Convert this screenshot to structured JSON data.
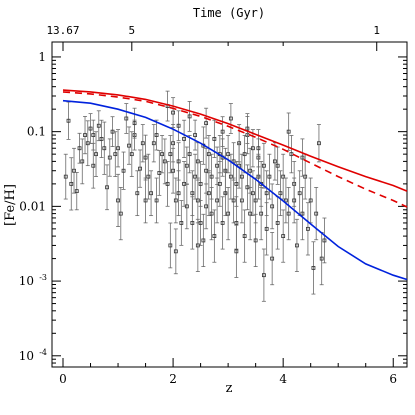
{
  "chart_data": {
    "type": "scatter",
    "xlabel": "z",
    "ylabel": "[Fe/H]",
    "top_axis_label": "Time (Gyr)",
    "top_ticks": [
      {
        "label": "13.67",
        "z": 0
      },
      {
        "label": "5",
        "z": 1.25
      },
      {
        "label": "1",
        "z": 5.7
      }
    ],
    "xlim": [
      -0.2,
      6.25
    ],
    "ylim_log10": [
      -4.15,
      0.2
    ],
    "x_major_ticks": [
      0,
      2,
      4,
      6
    ],
    "x_tick_labels": [
      "0",
      "2",
      "4",
      "6"
    ],
    "y_major_ticks_log10": [
      0,
      -1,
      -2,
      -3,
      -4
    ],
    "y_tick_labels": [
      {
        "base": "1",
        "exp": ""
      },
      {
        "base": "0.1",
        "exp": ""
      },
      {
        "base": "0.01",
        "exp": ""
      },
      {
        "base": "10",
        "exp": "-3"
      },
      {
        "base": "10",
        "exp": "-4"
      }
    ],
    "grid": false,
    "legend": "none",
    "series": [
      {
        "style": "solid",
        "color": "#e00000",
        "x": [
          0,
          0.5,
          1,
          1.5,
          2,
          2.5,
          3,
          3.5,
          4,
          4.5,
          5,
          5.5,
          6,
          6.25
        ],
        "y": [
          0.36,
          0.34,
          0.31,
          0.27,
          0.22,
          0.172,
          0.128,
          0.092,
          0.066,
          0.047,
          0.034,
          0.025,
          0.019,
          0.016
        ]
      },
      {
        "style": "dashed",
        "color": "#e00000",
        "x": [
          0,
          0.5,
          1,
          1.5,
          2,
          2.5,
          3,
          3.5,
          4,
          4.5,
          5,
          5.5,
          6,
          6.25
        ],
        "y": [
          0.34,
          0.32,
          0.29,
          0.255,
          0.205,
          0.16,
          0.118,
          0.084,
          0.058,
          0.038,
          0.025,
          0.017,
          0.012,
          0.0098
        ]
      },
      {
        "style": "solid",
        "color": "#0022dd",
        "x": [
          0,
          0.5,
          1,
          1.5,
          2,
          2.5,
          3,
          3.5,
          4,
          4.5,
          5,
          5.5,
          6,
          6.25
        ],
        "y": [
          0.26,
          0.24,
          0.2,
          0.155,
          0.108,
          0.07,
          0.042,
          0.023,
          0.0118,
          0.0058,
          0.0029,
          0.0017,
          0.0012,
          0.00105
        ]
      }
    ],
    "scatter": {
      "color": "#6a6a6a",
      "points": [
        [
          0.05,
          0.025,
          0.3
        ],
        [
          0.1,
          0.14,
          0.25
        ],
        [
          0.15,
          0.02,
          0.35
        ],
        [
          0.2,
          0.03,
          0.3
        ],
        [
          0.25,
          0.016,
          0.25
        ],
        [
          0.3,
          0.06,
          0.2
        ],
        [
          0.4,
          0.09,
          0.25
        ],
        [
          0.45,
          0.07,
          0.3
        ],
        [
          0.5,
          0.11,
          0.2
        ],
        [
          0.55,
          0.09,
          0.2
        ],
        [
          0.6,
          0.05,
          0.3
        ],
        [
          0.65,
          0.12,
          0.2
        ],
        [
          0.7,
          0.08,
          0.25
        ],
        [
          0.75,
          0.06,
          0.35
        ],
        [
          0.8,
          0.018,
          0.3
        ],
        [
          0.85,
          0.045,
          0.25
        ],
        [
          0.9,
          0.1,
          0.2
        ],
        [
          0.95,
          0.05,
          0.3
        ],
        [
          1.0,
          0.012,
          0.35
        ],
        [
          1.05,
          0.008,
          0.35
        ],
        [
          1.1,
          0.03,
          0.25
        ],
        [
          1.15,
          0.15,
          0.2
        ],
        [
          1.2,
          0.065,
          0.25
        ],
        [
          1.25,
          0.05,
          0.3
        ],
        [
          1.3,
          0.09,
          0.2
        ],
        [
          1.35,
          0.015,
          0.3
        ],
        [
          1.4,
          0.032,
          0.25
        ],
        [
          1.45,
          0.07,
          0.25
        ],
        [
          1.5,
          0.045,
          0.3
        ],
        [
          1.5,
          0.012,
          0.3
        ],
        [
          1.55,
          0.025,
          0.3
        ],
        [
          1.6,
          0.015,
          0.3
        ],
        [
          1.65,
          0.07,
          0.25
        ],
        [
          1.7,
          0.012,
          0.3
        ],
        [
          1.75,
          0.028,
          0.3
        ],
        [
          1.8,
          0.05,
          0.25
        ],
        [
          1.85,
          0.04,
          0.3
        ],
        [
          1.9,
          0.22,
          0.2
        ],
        [
          1.9,
          0.02,
          0.3
        ],
        [
          1.95,
          0.003,
          0.3
        ],
        [
          2.0,
          0.07,
          0.25
        ],
        [
          2.0,
          0.03,
          0.3
        ],
        [
          2.05,
          0.0025,
          0.3
        ],
        [
          2.05,
          0.012,
          0.3
        ],
        [
          2.1,
          0.015,
          0.3
        ],
        [
          2.1,
          0.04,
          0.25
        ],
        [
          2.15,
          0.006,
          0.3
        ],
        [
          2.2,
          0.02,
          0.3
        ],
        [
          2.2,
          0.08,
          0.25
        ],
        [
          2.25,
          0.035,
          0.25
        ],
        [
          2.25,
          0.01,
          0.3
        ],
        [
          2.3,
          0.05,
          0.25
        ],
        [
          2.35,
          0.015,
          0.3
        ],
        [
          2.35,
          0.006,
          0.35
        ],
        [
          2.4,
          0.025,
          0.3
        ],
        [
          2.4,
          0.09,
          0.2
        ],
        [
          2.45,
          0.012,
          0.3
        ],
        [
          2.45,
          0.04,
          0.25
        ],
        [
          2.5,
          0.006,
          0.3
        ],
        [
          2.5,
          0.02,
          0.3
        ],
        [
          2.55,
          0.065,
          0.25
        ],
        [
          2.55,
          0.0035,
          0.35
        ],
        [
          2.6,
          0.03,
          0.3
        ],
        [
          2.6,
          0.01,
          0.3
        ],
        [
          2.65,
          0.05,
          0.25
        ],
        [
          2.65,
          0.015,
          0.3
        ],
        [
          2.7,
          0.008,
          0.35
        ],
        [
          2.7,
          0.025,
          0.3
        ],
        [
          2.75,
          0.08,
          0.25
        ],
        [
          2.75,
          0.004,
          0.35
        ],
        [
          2.8,
          0.035,
          0.25
        ],
        [
          2.8,
          0.012,
          0.3
        ],
        [
          2.85,
          0.05,
          0.25
        ],
        [
          2.85,
          0.02,
          0.3
        ],
        [
          2.9,
          0.006,
          0.35
        ],
        [
          2.9,
          0.1,
          0.2
        ],
        [
          2.95,
          0.03,
          0.3
        ],
        [
          2.95,
          0.015,
          0.3
        ],
        [
          3.0,
          0.05,
          0.25
        ],
        [
          3.0,
          0.008,
          0.35
        ],
        [
          3.05,
          0.025,
          0.3
        ],
        [
          3.05,
          0.15,
          0.2
        ],
        [
          3.1,
          0.012,
          0.3
        ],
        [
          3.1,
          0.04,
          0.25
        ],
        [
          3.15,
          0.02,
          0.3
        ],
        [
          3.15,
          0.006,
          0.35
        ],
        [
          3.2,
          0.07,
          0.25
        ],
        [
          3.2,
          0.035,
          0.3
        ],
        [
          3.25,
          0.012,
          0.3
        ],
        [
          3.25,
          0.025,
          0.3
        ],
        [
          3.3,
          0.05,
          0.25
        ],
        [
          3.3,
          0.004,
          0.35
        ],
        [
          3.35,
          0.018,
          0.3
        ],
        [
          3.35,
          0.09,
          0.25
        ],
        [
          3.4,
          0.03,
          0.3
        ],
        [
          3.4,
          0.008,
          0.35
        ],
        [
          3.45,
          0.015,
          0.3
        ],
        [
          3.45,
          0.06,
          0.25
        ],
        [
          3.5,
          0.012,
          0.3
        ],
        [
          3.5,
          0.0035,
          0.35
        ],
        [
          3.55,
          0.025,
          0.3
        ],
        [
          3.55,
          0.045,
          0.25
        ],
        [
          3.6,
          0.008,
          0.35
        ],
        [
          3.6,
          0.02,
          0.3
        ],
        [
          3.65,
          0.0012,
          0.35
        ],
        [
          3.65,
          0.035,
          0.3
        ],
        [
          3.7,
          0.015,
          0.3
        ],
        [
          3.7,
          0.005,
          0.35
        ],
        [
          3.75,
          0.025,
          0.3
        ],
        [
          3.8,
          0.002,
          0.35
        ],
        [
          3.8,
          0.01,
          0.3
        ],
        [
          3.85,
          0.04,
          0.25
        ],
        [
          3.9,
          0.006,
          0.35
        ],
        [
          3.95,
          0.015,
          0.3
        ],
        [
          4.0,
          0.025,
          0.3
        ],
        [
          4.0,
          0.004,
          0.35
        ],
        [
          4.05,
          0.012,
          0.3
        ],
        [
          4.1,
          0.008,
          0.35
        ],
        [
          4.15,
          0.05,
          0.25
        ],
        [
          4.2,
          0.02,
          0.3
        ],
        [
          4.25,
          0.003,
          0.35
        ],
        [
          4.3,
          0.015,
          0.3
        ],
        [
          4.35,
          0.008,
          0.35
        ],
        [
          4.4,
          0.025,
          0.3
        ],
        [
          4.45,
          0.005,
          0.35
        ],
        [
          4.5,
          0.012,
          0.3
        ],
        [
          4.55,
          0.0015,
          0.35
        ],
        [
          4.6,
          0.008,
          0.35
        ],
        [
          4.65,
          0.07,
          0.25
        ],
        [
          4.7,
          0.002,
          0.35
        ],
        [
          4.75,
          0.0035,
          0.3
        ],
        [
          4.35,
          0.045,
          0.25
        ],
        [
          4.1,
          0.1,
          0.25
        ],
        [
          2.1,
          0.12,
          0.2
        ],
        [
          2.3,
          0.16,
          0.2
        ],
        [
          2.6,
          0.13,
          0.2
        ],
        [
          2.0,
          0.18,
          0.2
        ],
        [
          1.7,
          0.09,
          0.2
        ],
        [
          1.3,
          0.13,
          0.2
        ],
        [
          3.35,
          0.11,
          0.2
        ],
        [
          0.35,
          0.04,
          0.3
        ],
        [
          0.55,
          0.035,
          0.3
        ],
        [
          1.0,
          0.06,
          0.25
        ],
        [
          1.95,
          0.05,
          0.25
        ],
        [
          2.9,
          0.045,
          0.25
        ],
        [
          3.55,
          0.06,
          0.25
        ],
        [
          3.9,
          0.035,
          0.25
        ],
        [
          4.2,
          0.012,
          0.3
        ],
        [
          3.15,
          0.0025,
          0.35
        ],
        [
          2.45,
          0.003,
          0.35
        ]
      ]
    }
  }
}
